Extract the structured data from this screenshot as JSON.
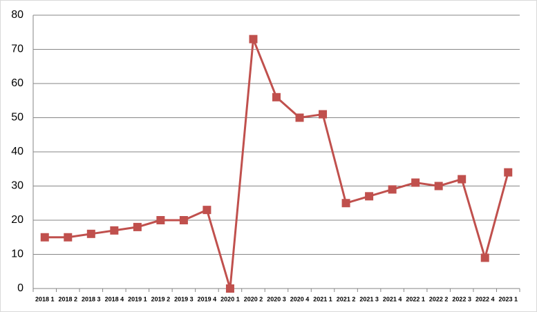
{
  "chart_data": {
    "type": "line",
    "categories": [
      "2018 1",
      "2018 2",
      "2018 3",
      "2018 4",
      "2019 1",
      "2019 2",
      "2019 3",
      "2019 4",
      "2020 1",
      "2020 2",
      "2020 3",
      "2020 4",
      "2021 1",
      "2021 2",
      "2021 3",
      "2021 4",
      "2022 1",
      "2022 2",
      "2022 3",
      "2022 4",
      "2023 1"
    ],
    "values": [
      15,
      15,
      16,
      17,
      18,
      20,
      20,
      23,
      0,
      73,
      56,
      50,
      51,
      25,
      27,
      29,
      31,
      30,
      32,
      9,
      34
    ],
    "color": "#c0504d",
    "ylim": [
      0,
      80
    ],
    "yticks": [
      0,
      10,
      20,
      30,
      40,
      50,
      60,
      70,
      80
    ],
    "grid": true
  }
}
